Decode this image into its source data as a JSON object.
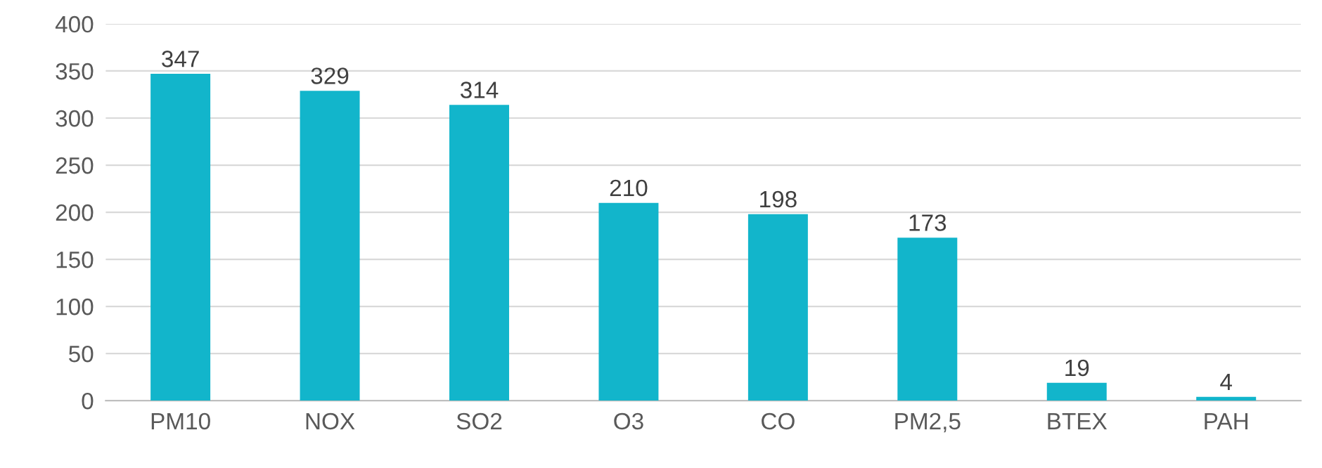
{
  "chart_data": {
    "type": "bar",
    "categories": [
      "PM10",
      "NOX",
      "SO2",
      "O3",
      "CO",
      "PM2,5",
      "BTEX",
      "PAH"
    ],
    "values": [
      347,
      329,
      314,
      210,
      198,
      173,
      19,
      4
    ],
    "color": "#12b5cb",
    "ylim": [
      0,
      400
    ],
    "yticks": [
      0,
      50,
      100,
      150,
      200,
      250,
      300,
      350,
      400
    ],
    "grid": "y",
    "data_labels": true
  }
}
